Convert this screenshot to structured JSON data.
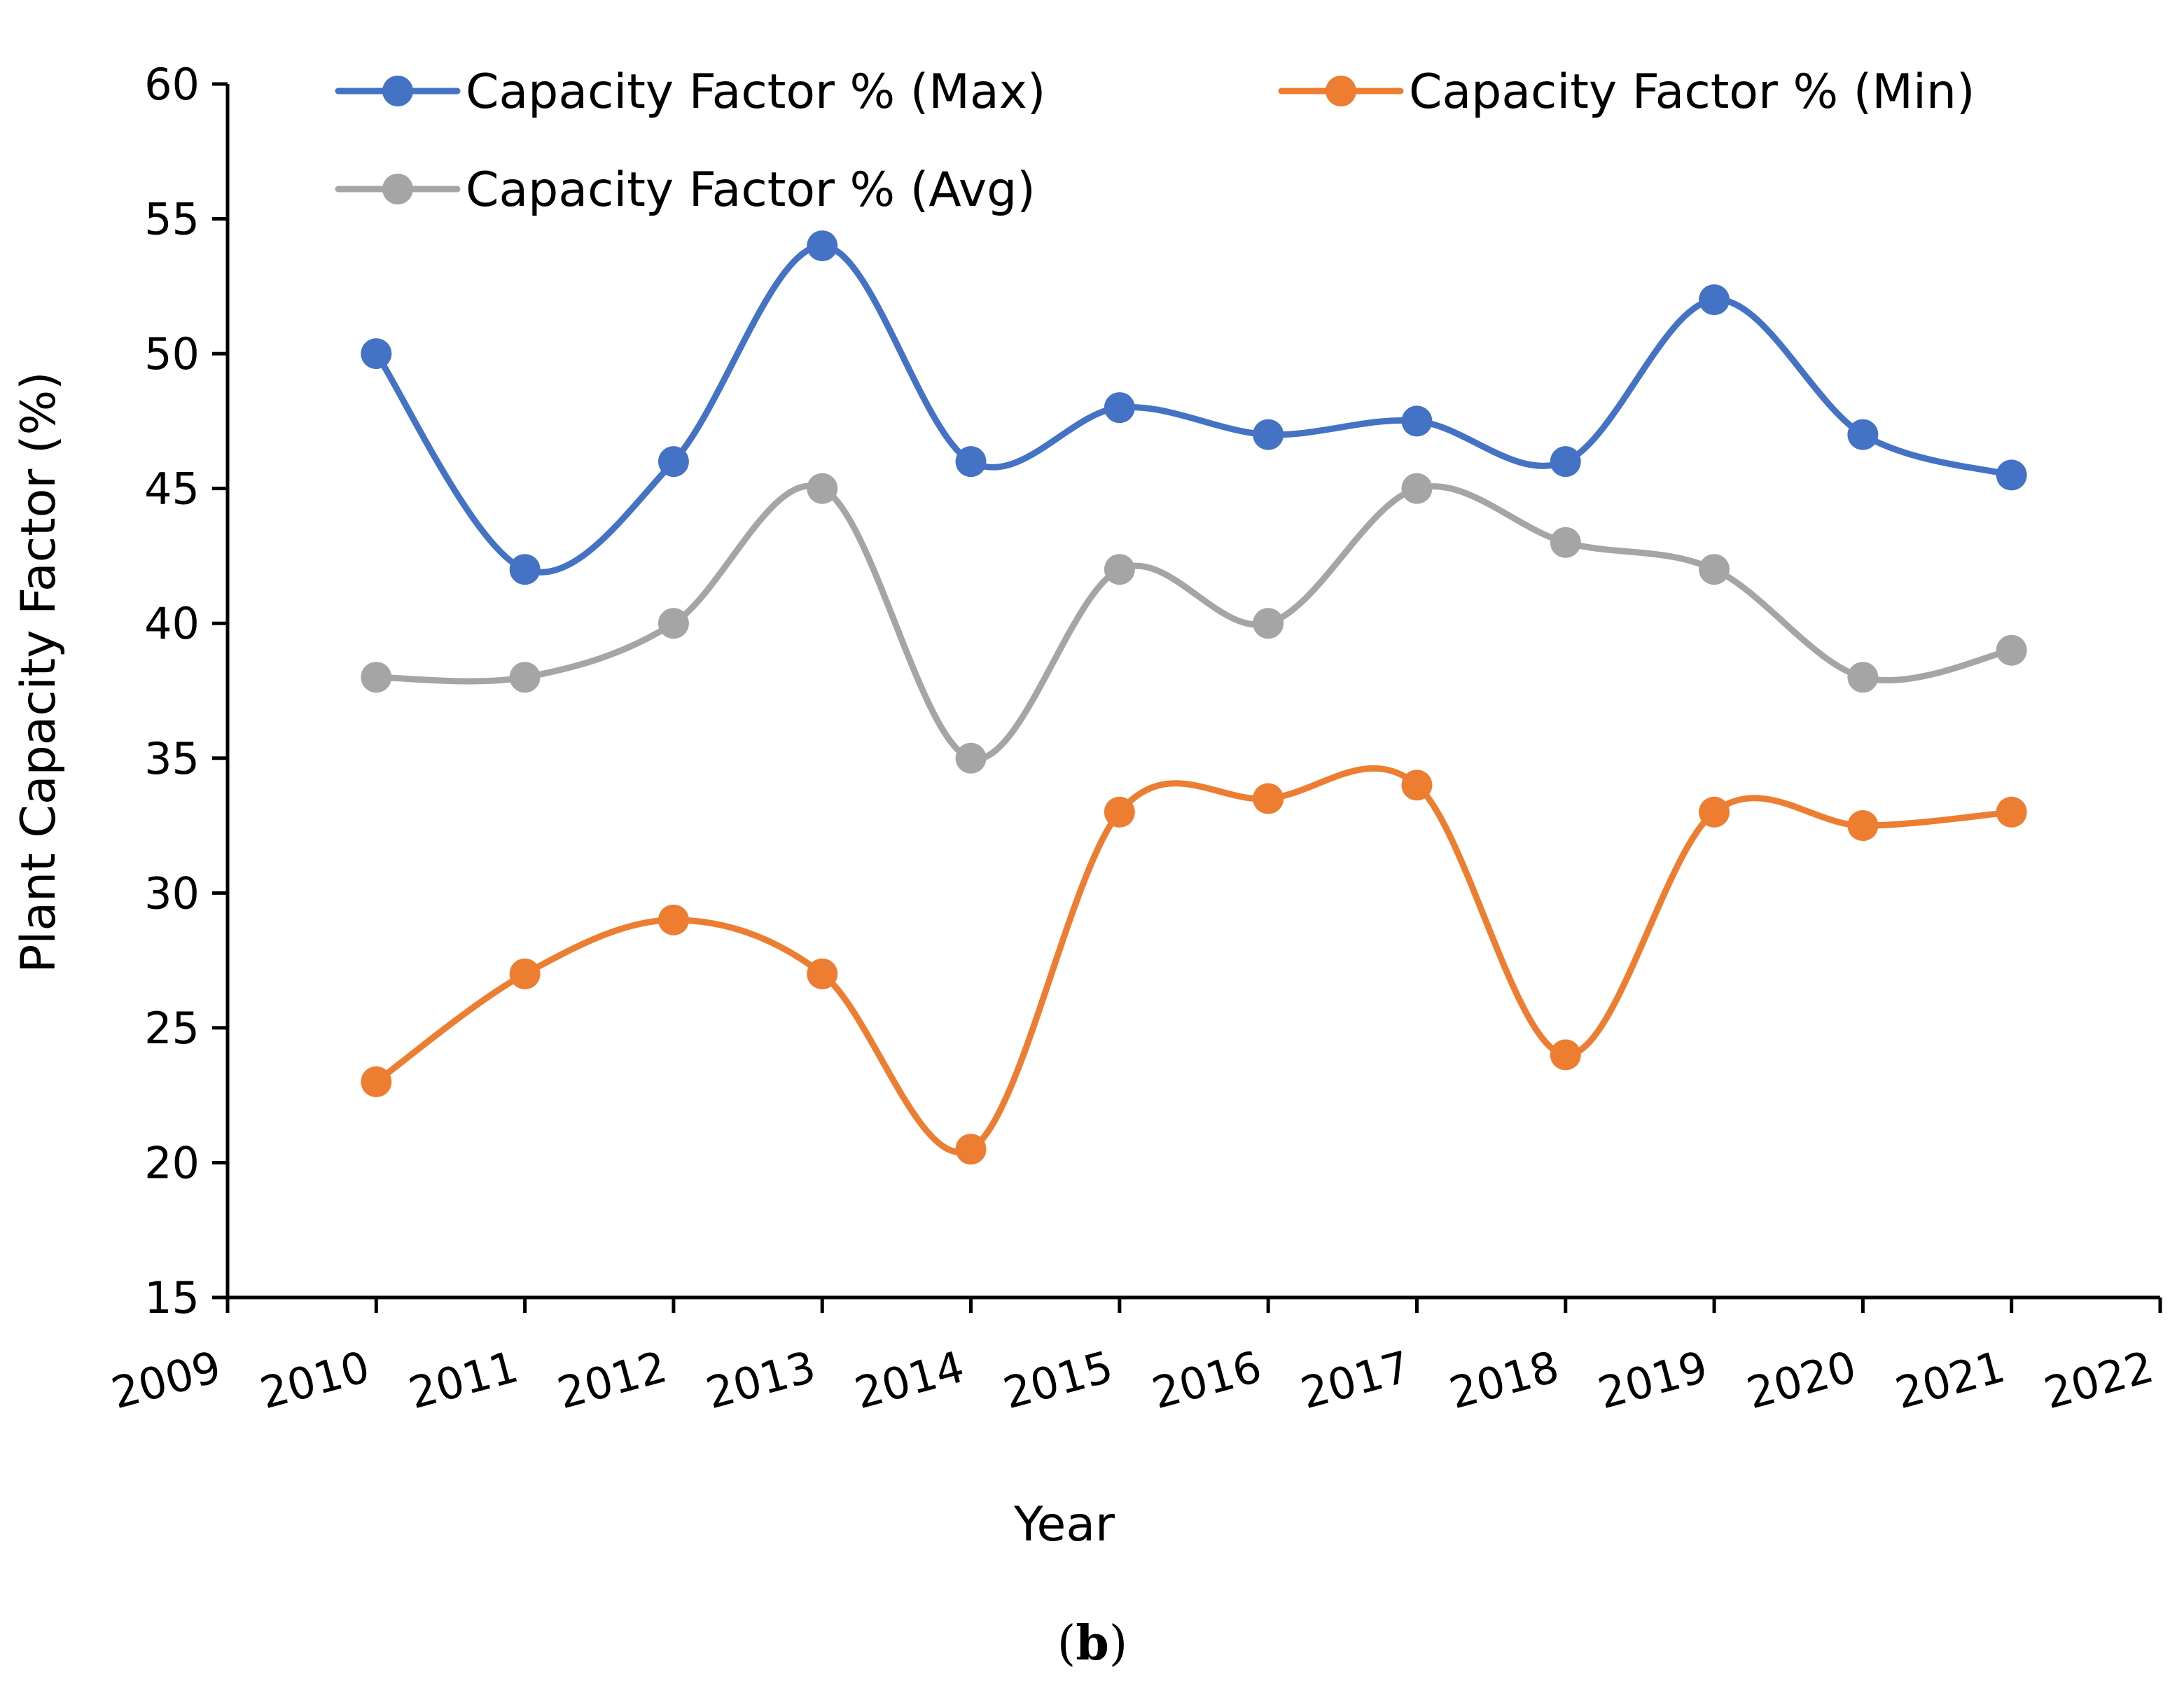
{
  "chart_data": {
    "type": "line",
    "title": "",
    "xlabel": "Year",
    "ylabel": "Plant Capacity Factor (%)",
    "xlim": [
      2009,
      2022
    ],
    "ylim": [
      15,
      60
    ],
    "x_ticks": [
      "2009",
      "2010",
      "2011",
      "2012",
      "2013",
      "2014",
      "2015",
      "2016",
      "2017",
      "2018",
      "2019",
      "2020",
      "2021",
      "2022"
    ],
    "y_ticks": [
      "15",
      "20",
      "25",
      "30",
      "35",
      "40",
      "45",
      "50",
      "55",
      "60"
    ],
    "x": [
      2010,
      2011,
      2012,
      2013,
      2014,
      2015,
      2016,
      2017,
      2018,
      2019,
      2020,
      2021
    ],
    "series": [
      {
        "name": "Capacity Factor % (Max)",
        "color": "#4472c4",
        "values": [
          50,
          42,
          46,
          54,
          46,
          48,
          47,
          47.5,
          46,
          52,
          47,
          45.5
        ]
      },
      {
        "name": "Capacity Factor % (Min)",
        "color": "#ed7d31",
        "values": [
          23,
          27,
          29,
          27,
          20.5,
          33,
          33.5,
          34,
          24,
          33,
          32.5,
          33
        ]
      },
      {
        "name": "Capacity Factor % (Avg)",
        "color": "#a5a5a5",
        "values": [
          38,
          38,
          40,
          45,
          35,
          42,
          40,
          45,
          43,
          42,
          38,
          39
        ]
      }
    ],
    "legend_position": "top",
    "grid": false
  },
  "caption": {
    "open": "(",
    "letter": "b",
    "close": ")"
  }
}
